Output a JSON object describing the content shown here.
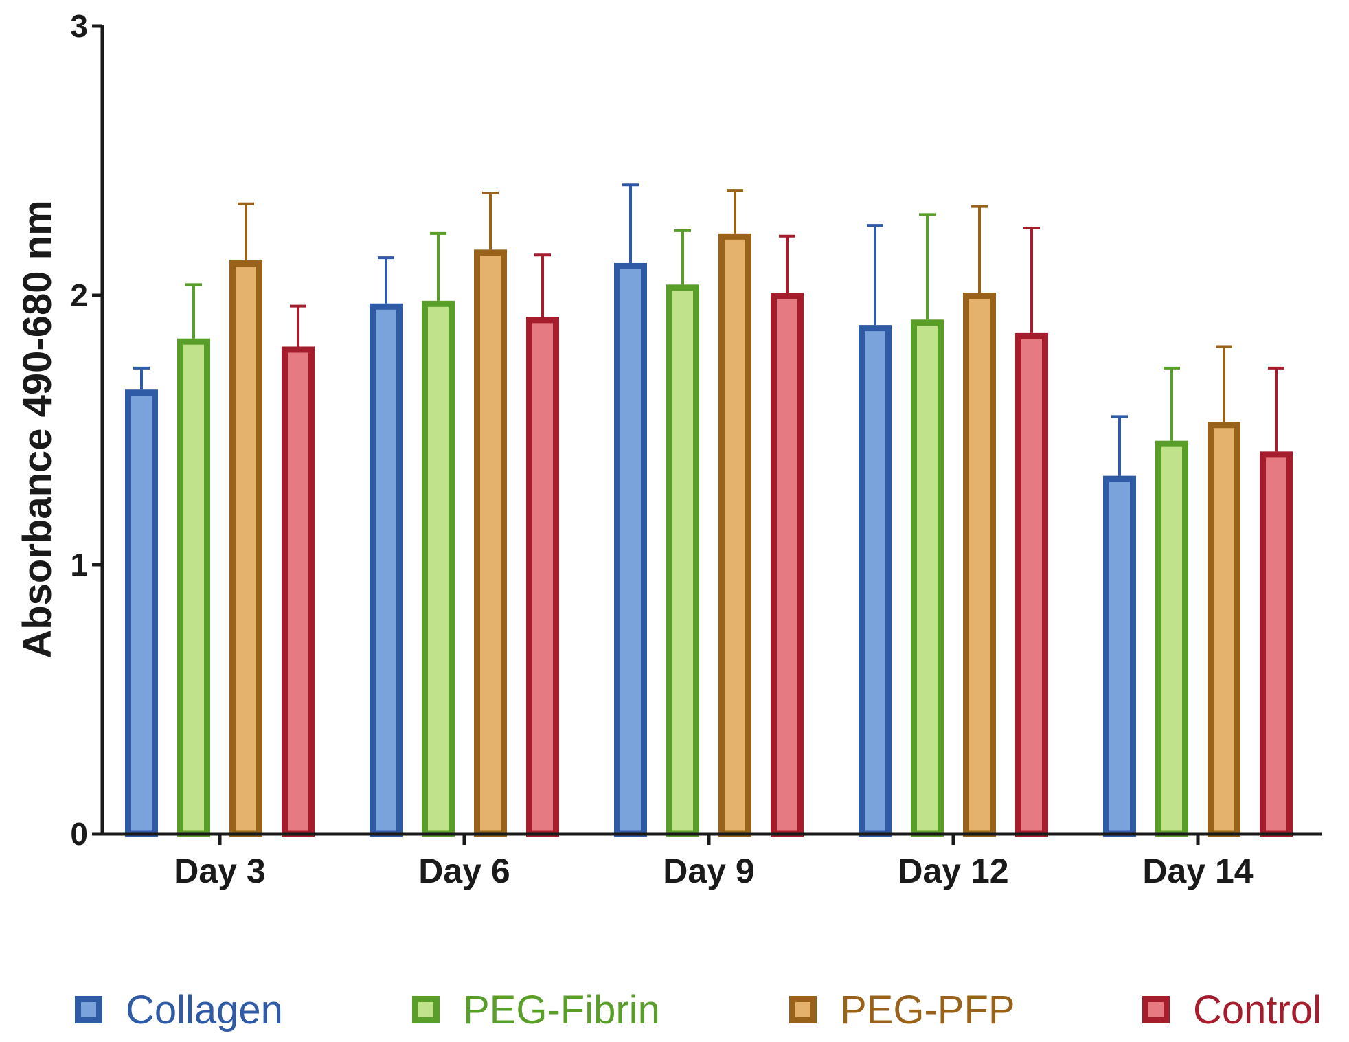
{
  "chart_data": {
    "type": "bar",
    "title": "",
    "xlabel": "",
    "ylabel": "Absorbance 490-680 nm",
    "ylim": [
      0,
      3
    ],
    "yticks": [
      "0",
      "1",
      "2",
      "3"
    ],
    "grid": false,
    "legend_position": "bottom",
    "categories": [
      "Day 3",
      "Day 6",
      "Day 9",
      "Day 12",
      "Day 14"
    ],
    "series": [
      {
        "name": "Collagen",
        "values": [
          1.65,
          1.97,
          2.12,
          1.89,
          1.33
        ],
        "errors": [
          0.08,
          0.17,
          0.29,
          0.37,
          0.22
        ],
        "edge_color": "#2e5aa6",
        "fill_color": "#7aa3db"
      },
      {
        "name": "PEG-Fibrin",
        "values": [
          1.84,
          1.98,
          2.04,
          1.91,
          1.46
        ],
        "errors": [
          0.2,
          0.25,
          0.2,
          0.39,
          0.27
        ],
        "edge_color": "#5a9e2a",
        "fill_color": "#bfe28a"
      },
      {
        "name": "PEG-PFP",
        "values": [
          2.13,
          2.17,
          2.23,
          2.01,
          1.53
        ],
        "errors": [
          0.21,
          0.21,
          0.16,
          0.32,
          0.28
        ],
        "edge_color": "#98621a",
        "fill_color": "#e5b26e"
      },
      {
        "name": "Control",
        "values": [
          1.81,
          1.92,
          2.01,
          1.86,
          1.42
        ],
        "errors": [
          0.15,
          0.23,
          0.21,
          0.39,
          0.31
        ],
        "edge_color": "#a51c2c",
        "fill_color": "#e57a82"
      }
    ]
  }
}
